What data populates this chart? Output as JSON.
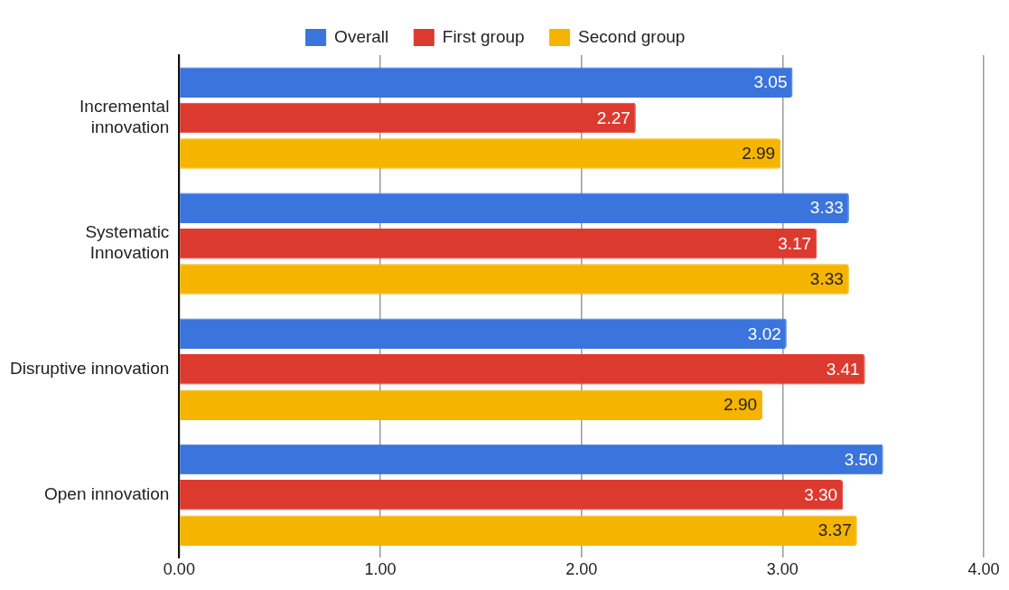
{
  "chart_data": {
    "type": "bar",
    "orientation": "horizontal",
    "categories": [
      "Incremental\ninnovation",
      "Systematic\nInnovation",
      "Disruptive innovation",
      "Open innovation"
    ],
    "series": [
      {
        "name": "Overall",
        "color": "#3a74dc",
        "values": [
          3.05,
          3.33,
          3.02,
          3.5
        ],
        "value_labels": [
          "3.05",
          "3.33",
          "3.02",
          "3.50"
        ]
      },
      {
        "name": "First group",
        "color": "#dd3a2f",
        "values": [
          2.27,
          3.17,
          3.41,
          3.3
        ],
        "value_labels": [
          "2.27",
          "3.17",
          "3.41",
          "3.30"
        ]
      },
      {
        "name": "Second group",
        "color": "#f5b400",
        "values": [
          2.99,
          3.33,
          2.9,
          3.37
        ],
        "value_labels": [
          "2.99",
          "3.33",
          "2.90",
          "3.37"
        ]
      }
    ],
    "xlim": [
      0,
      4
    ],
    "xticks": [
      {
        "value": 0,
        "label": "0.00"
      },
      {
        "value": 1,
        "label": "1.00"
      },
      {
        "value": 2,
        "label": "2.00"
      },
      {
        "value": 3,
        "label": "3.00"
      },
      {
        "value": 4,
        "label": "4.00"
      }
    ],
    "grid": "x",
    "legend": "top"
  }
}
